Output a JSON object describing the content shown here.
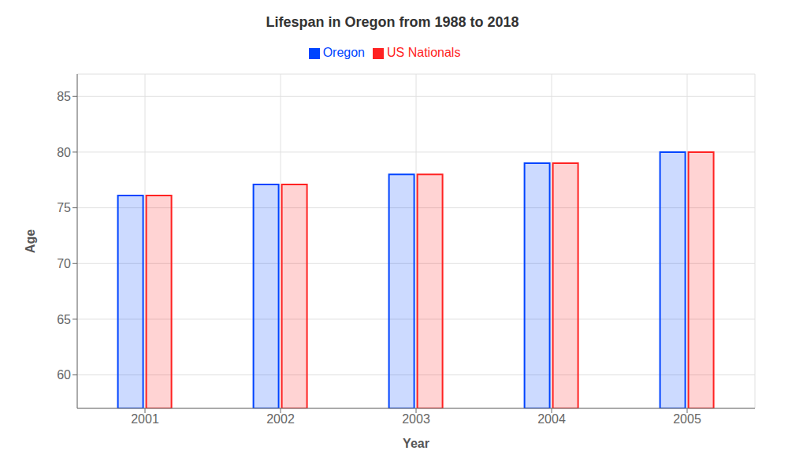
{
  "chart_data": {
    "type": "bar",
    "title": "Lifespan in Oregon from 1988 to 2018",
    "xlabel": "Year",
    "ylabel": "Age",
    "categories": [
      "2001",
      "2002",
      "2003",
      "2004",
      "2005"
    ],
    "series": [
      {
        "name": "Oregon",
        "color": "#0044ff",
        "values": [
          76.1,
          77.1,
          78.0,
          79.0,
          80.0
        ]
      },
      {
        "name": "US Nationals",
        "color": "#ff2222",
        "values": [
          76.1,
          77.1,
          78.0,
          79.0,
          80.0
        ]
      }
    ],
    "ylim": [
      57,
      87
    ],
    "yticks": [
      60,
      65,
      70,
      75,
      80,
      85
    ],
    "grid": true,
    "legend": "top"
  }
}
